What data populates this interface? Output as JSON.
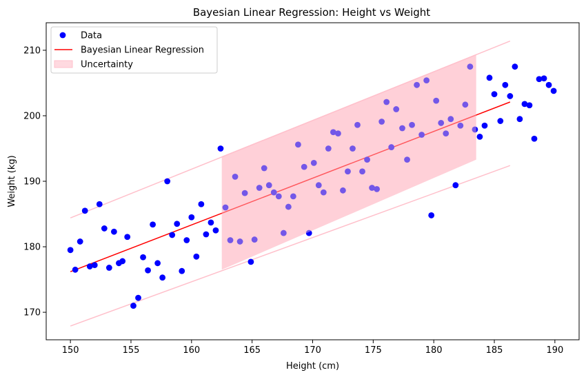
{
  "chart_data": {
    "type": "scatter",
    "title": "Bayesian Linear Regression: Height vs Weight",
    "xlabel": "Height (cm)",
    "ylabel": "Weight (kg)",
    "xlim": [
      148,
      192
    ],
    "ylim": [
      165.8,
      214.2
    ],
    "xticks": [
      150,
      155,
      160,
      165,
      170,
      175,
      180,
      185,
      190
    ],
    "yticks": [
      170,
      180,
      190,
      200,
      210
    ],
    "grid": false,
    "legend_position": "top-left",
    "legend": [
      {
        "label": "Data",
        "kind": "marker",
        "color": "#0000ff"
      },
      {
        "label": "Bayesian Linear Regression",
        "kind": "line",
        "color": "#ff0000"
      },
      {
        "label": "Uncertainty",
        "kind": "patch",
        "color": "#ffc0cb"
      }
    ],
    "series": [
      {
        "name": "Data",
        "kind": "scatter",
        "color": "#0000ff",
        "points": [
          [
            150.0,
            179.5
          ],
          [
            150.4,
            176.5
          ],
          [
            150.8,
            180.8
          ],
          [
            151.2,
            185.5
          ],
          [
            151.6,
            177.0
          ],
          [
            152.0,
            177.2
          ],
          [
            152.4,
            186.5
          ],
          [
            152.8,
            182.8
          ],
          [
            153.2,
            176.8
          ],
          [
            153.6,
            182.3
          ],
          [
            154.0,
            177.5
          ],
          [
            154.3,
            177.8
          ],
          [
            154.7,
            181.5
          ],
          [
            155.2,
            171.0
          ],
          [
            155.6,
            172.2
          ],
          [
            156.0,
            178.4
          ],
          [
            156.4,
            176.4
          ],
          [
            156.8,
            183.4
          ],
          [
            157.2,
            177.5
          ],
          [
            157.6,
            175.3
          ],
          [
            158.0,
            190.0
          ],
          [
            158.4,
            181.8
          ],
          [
            158.8,
            183.5
          ],
          [
            159.2,
            176.3
          ],
          [
            159.6,
            181.0
          ],
          [
            160.0,
            184.5
          ],
          [
            160.4,
            178.5
          ],
          [
            160.8,
            186.5
          ],
          [
            161.2,
            181.9
          ],
          [
            161.6,
            183.7
          ],
          [
            162.0,
            182.5
          ],
          [
            162.4,
            195.0
          ],
          [
            162.8,
            186.0
          ],
          [
            163.2,
            181.0
          ],
          [
            163.6,
            190.7
          ],
          [
            164.0,
            180.8
          ],
          [
            164.4,
            188.2
          ],
          [
            164.9,
            177.7
          ],
          [
            165.2,
            181.1
          ],
          [
            165.6,
            189.0
          ],
          [
            166.0,
            192.0
          ],
          [
            166.4,
            189.4
          ],
          [
            166.8,
            188.3
          ],
          [
            167.2,
            187.7
          ],
          [
            167.6,
            182.1
          ],
          [
            168.0,
            186.1
          ],
          [
            168.4,
            187.7
          ],
          [
            168.8,
            195.6
          ],
          [
            169.3,
            192.2
          ],
          [
            169.7,
            182.1
          ],
          [
            170.1,
            192.8
          ],
          [
            170.5,
            189.4
          ],
          [
            170.9,
            188.3
          ],
          [
            171.3,
            195.0
          ],
          [
            171.7,
            197.5
          ],
          [
            172.1,
            197.3
          ],
          [
            172.5,
            188.6
          ],
          [
            172.9,
            191.5
          ],
          [
            173.3,
            195.0
          ],
          [
            173.7,
            198.6
          ],
          [
            174.1,
            191.5
          ],
          [
            174.5,
            193.3
          ],
          [
            174.9,
            189.0
          ],
          [
            175.3,
            188.8
          ],
          [
            175.7,
            199.1
          ],
          [
            176.1,
            202.1
          ],
          [
            176.5,
            195.2
          ],
          [
            176.9,
            201.0
          ],
          [
            177.4,
            198.1
          ],
          [
            177.8,
            193.3
          ],
          [
            178.2,
            198.6
          ],
          [
            178.6,
            204.7
          ],
          [
            179.0,
            197.1
          ],
          [
            179.4,
            205.4
          ],
          [
            179.8,
            184.8
          ],
          [
            180.2,
            202.3
          ],
          [
            180.6,
            198.9
          ],
          [
            181.0,
            197.3
          ],
          [
            181.4,
            199.5
          ],
          [
            181.8,
            189.4
          ],
          [
            182.2,
            198.5
          ],
          [
            182.6,
            201.7
          ],
          [
            183.0,
            207.5
          ],
          [
            183.4,
            197.9
          ],
          [
            183.8,
            196.8
          ],
          [
            184.2,
            198.5
          ],
          [
            184.6,
            205.8
          ],
          [
            185.0,
            203.3
          ],
          [
            185.5,
            199.2
          ],
          [
            185.9,
            204.7
          ],
          [
            186.3,
            203.0
          ],
          [
            186.7,
            207.5
          ],
          [
            187.1,
            199.5
          ],
          [
            187.5,
            201.8
          ],
          [
            187.9,
            201.6
          ],
          [
            188.3,
            196.5
          ],
          [
            188.7,
            205.6
          ],
          [
            189.1,
            205.7
          ],
          [
            189.5,
            204.7
          ],
          [
            189.9,
            203.8
          ]
        ]
      },
      {
        "name": "Bayesian Linear Regression",
        "kind": "line",
        "color": "#ff0000",
        "points": [
          [
            150.0,
            176.2
          ],
          [
            186.3,
            202.1
          ]
        ]
      }
    ],
    "uncertainty_band": {
      "name": "Uncertainty",
      "color": "#ffc0cb",
      "x_range": [
        162.5,
        183.5
      ],
      "lower_at_x_range": [
        176.5,
        193.3
      ],
      "upper_at_x_range": [
        193.8,
        209.4
      ]
    },
    "bound_lines": {
      "color": "#ffc0cb",
      "lower": [
        [
          150.0,
          167.9
        ],
        [
          186.3,
          192.4
        ]
      ],
      "upper": [
        [
          150.0,
          184.4
        ],
        [
          186.3,
          211.4
        ]
      ]
    }
  }
}
